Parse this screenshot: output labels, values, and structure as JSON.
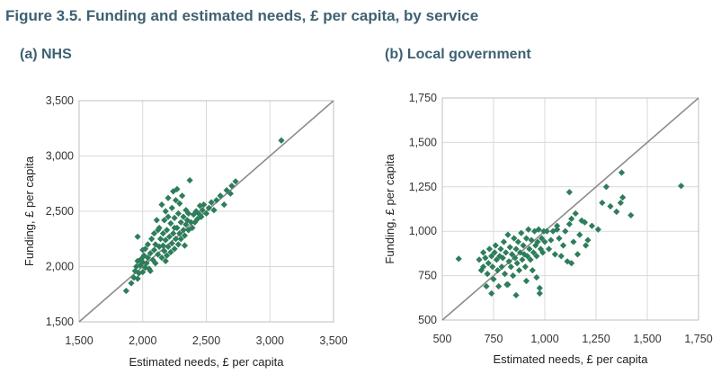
{
  "figure": {
    "title": "Figure 3.5. Funding and estimated needs, £ per capita, by service"
  },
  "colors": {
    "marker": "#2e7d5b",
    "diagonal": "#8c8c8c",
    "grid": "#d9d9d9",
    "frame": "#bfbfbf",
    "title": "#3e6172"
  },
  "chart_data": [
    {
      "type": "scatter",
      "title": "(a) NHS",
      "xlabel": "Estimated needs, £ per capita",
      "ylabel": "Funding, £ per capita",
      "xlim": [
        1500,
        3500
      ],
      "ylim": [
        1500,
        3500
      ],
      "xticks": [
        1500,
        2000,
        2500,
        3000,
        3500
      ],
      "yticks": [
        1500,
        2000,
        2500,
        3000,
        3500
      ],
      "xtick_labels": [
        "1,500",
        "2,000",
        "2,500",
        "3,000",
        "3,500"
      ],
      "ytick_labels": [
        "1,500",
        "2,000",
        "2,500",
        "3,000",
        "3,500"
      ],
      "grid": true,
      "diagonal_line": true,
      "points": [
        [
          1870,
          1780
        ],
        [
          1910,
          1850
        ],
        [
          1930,
          1900
        ],
        [
          1940,
          1960
        ],
        [
          1950,
          2000
        ],
        [
          1960,
          1890
        ],
        [
          1960,
          2050
        ],
        [
          1970,
          1940
        ],
        [
          1980,
          2010
        ],
        [
          1990,
          2070
        ],
        [
          2000,
          1950
        ],
        [
          2000,
          2040
        ],
        [
          2010,
          2100
        ],
        [
          2020,
          1990
        ],
        [
          2020,
          2160
        ],
        [
          2030,
          2030
        ],
        [
          2040,
          2080
        ],
        [
          2040,
          2200
        ],
        [
          2050,
          1980
        ],
        [
          2060,
          2120
        ],
        [
          2070,
          2250
        ],
        [
          2080,
          2060
        ],
        [
          2090,
          2150
        ],
        [
          2090,
          2300
        ],
        [
          2100,
          2030
        ],
        [
          2100,
          2200
        ],
        [
          2110,
          2420
        ],
        [
          2120,
          2110
        ],
        [
          2130,
          2180
        ],
        [
          2130,
          2350
        ],
        [
          2140,
          2250
        ],
        [
          2150,
          2080
        ],
        [
          2150,
          2560
        ],
        [
          2160,
          2190
        ],
        [
          2160,
          2300
        ],
        [
          2170,
          2140
        ],
        [
          2170,
          2420
        ],
        [
          2180,
          2240
        ],
        [
          2180,
          2500
        ],
        [
          2190,
          2100
        ],
        [
          2190,
          2330
        ],
        [
          2200,
          2180
        ],
        [
          2200,
          2450
        ],
        [
          2200,
          2620
        ],
        [
          2210,
          2270
        ],
        [
          2220,
          2130
        ],
        [
          2220,
          2390
        ],
        [
          2230,
          2210
        ],
        [
          2230,
          2530
        ],
        [
          2240,
          2300
        ],
        [
          2240,
          2680
        ],
        [
          2250,
          2160
        ],
        [
          2250,
          2440
        ],
        [
          2260,
          2250
        ],
        [
          2260,
          2600
        ],
        [
          2270,
          2350
        ],
        [
          2270,
          2700
        ],
        [
          2280,
          2200
        ],
        [
          2280,
          2480
        ],
        [
          2290,
          2300
        ],
        [
          2290,
          2570
        ],
        [
          2300,
          2250
        ],
        [
          2300,
          2400
        ],
        [
          2310,
          2640
        ],
        [
          2320,
          2330
        ],
        [
          2320,
          2450
        ],
        [
          2330,
          2280
        ],
        [
          2340,
          2380
        ],
        [
          2340,
          2510
        ],
        [
          2350,
          2420
        ],
        [
          2360,
          2330
        ],
        [
          2360,
          2480
        ],
        [
          2370,
          2780
        ],
        [
          2380,
          2400
        ],
        [
          2390,
          2350
        ],
        [
          2400,
          2470
        ],
        [
          2410,
          2400
        ],
        [
          2420,
          2500
        ],
        [
          2430,
          2430
        ],
        [
          2440,
          2480
        ],
        [
          2450,
          2550
        ],
        [
          2460,
          2450
        ],
        [
          2470,
          2510
        ],
        [
          2480,
          2560
        ],
        [
          2500,
          2480
        ],
        [
          2520,
          2530
        ],
        [
          2540,
          2580
        ],
        [
          2560,
          2510
        ],
        [
          2580,
          2600
        ],
        [
          2610,
          2640
        ],
        [
          2640,
          2560
        ],
        [
          2660,
          2690
        ],
        [
          2700,
          2730
        ],
        [
          2730,
          2770
        ],
        [
          2690,
          2660
        ],
        [
          2000,
          2150
        ],
        [
          2120,
          2330
        ],
        [
          2060,
          1960
        ],
        [
          2180,
          2050
        ],
        [
          2250,
          2350
        ],
        [
          2330,
          2190
        ],
        [
          1960,
          2270
        ],
        [
          3090,
          3140
        ]
      ]
    },
    {
      "type": "scatter",
      "title": "(b) Local government",
      "xlabel": "Estimated needs, £ per capita",
      "ylabel": "Funding, £ per capita",
      "xlim": [
        500,
        1750
      ],
      "ylim": [
        500,
        1750
      ],
      "xticks": [
        500,
        750,
        1000,
        1250,
        1500,
        1750
      ],
      "yticks": [
        500,
        750,
        1000,
        1250,
        1500,
        1750
      ],
      "xtick_labels": [
        "500",
        "750",
        "1,000",
        "1,250",
        "1,500",
        "1,750"
      ],
      "ytick_labels": [
        "500",
        "750",
        "1,000",
        "1,250",
        "1,500",
        "1,750"
      ],
      "grid": true,
      "diagonal_line": true,
      "points": [
        [
          580,
          845
        ],
        [
          680,
          840
        ],
        [
          690,
          780
        ],
        [
          700,
          800
        ],
        [
          700,
          880
        ],
        [
          710,
          850
        ],
        [
          715,
          690
        ],
        [
          720,
          760
        ],
        [
          725,
          820
        ],
        [
          730,
          900
        ],
        [
          740,
          860
        ],
        [
          745,
          800
        ],
        [
          750,
          730
        ],
        [
          755,
          880
        ],
        [
          760,
          920
        ],
        [
          765,
          840
        ],
        [
          770,
          780
        ],
        [
          775,
          690
        ],
        [
          780,
          860
        ],
        [
          785,
          900
        ],
        [
          790,
          800
        ],
        [
          795,
          850
        ],
        [
          800,
          940
        ],
        [
          805,
          760
        ],
        [
          810,
          880
        ],
        [
          815,
          700
        ],
        [
          820,
          980
        ],
        [
          825,
          830
        ],
        [
          830,
          910
        ],
        [
          835,
          800
        ],
        [
          840,
          870
        ],
        [
          845,
          750
        ],
        [
          850,
          960
        ],
        [
          855,
          850
        ],
        [
          860,
          900
        ],
        [
          865,
          820
        ],
        [
          870,
          940
        ],
        [
          875,
          780
        ],
        [
          880,
          880
        ],
        [
          885,
          990
        ],
        [
          890,
          840
        ],
        [
          895,
          920
        ],
        [
          900,
          870
        ],
        [
          905,
          800
        ],
        [
          910,
          960
        ],
        [
          915,
          860
        ],
        [
          920,
          1010
        ],
        [
          925,
          900
        ],
        [
          930,
          840
        ],
        [
          935,
          950
        ],
        [
          940,
          780
        ],
        [
          945,
          880
        ],
        [
          950,
          1000
        ],
        [
          955,
          920
        ],
        [
          960,
          860
        ],
        [
          965,
          940
        ],
        [
          970,
          1010
        ],
        [
          975,
          680
        ],
        [
          975,
          650
        ],
        [
          980,
          900
        ],
        [
          985,
          960
        ],
        [
          990,
          880
        ],
        [
          995,
          1000
        ],
        [
          1000,
          940
        ],
        [
          1010,
          1000
        ],
        [
          1020,
          900
        ],
        [
          1030,
          950
        ],
        [
          1040,
          1000
        ],
        [
          1050,
          870
        ],
        [
          1060,
          1010
        ],
        [
          1070,
          960
        ],
        [
          1080,
          860
        ],
        [
          1090,
          920
        ],
        [
          1100,
          1000
        ],
        [
          1110,
          830
        ],
        [
          1120,
          1040
        ],
        [
          1130,
          1070
        ],
        [
          1140,
          940
        ],
        [
          1150,
          1100
        ],
        [
          1160,
          870
        ],
        [
          1170,
          980
        ],
        [
          1180,
          1060
        ],
        [
          1195,
          1050
        ],
        [
          1200,
          920
        ],
        [
          1210,
          950
        ],
        [
          1230,
          1030
        ],
        [
          1260,
          1010
        ],
        [
          1280,
          1160
        ],
        [
          1300,
          1250
        ],
        [
          1320,
          1140
        ],
        [
          1350,
          1110
        ],
        [
          1370,
          1160
        ],
        [
          1375,
          1330
        ],
        [
          1380,
          1190
        ],
        [
          1420,
          1090
        ],
        [
          1120,
          1220
        ],
        [
          1130,
          820
        ],
        [
          960,
          740
        ],
        [
          820,
          700
        ],
        [
          740,
          650
        ],
        [
          910,
          720
        ],
        [
          860,
          640
        ],
        [
          1060,
          1030
        ],
        [
          1665,
          1255
        ]
      ]
    }
  ]
}
